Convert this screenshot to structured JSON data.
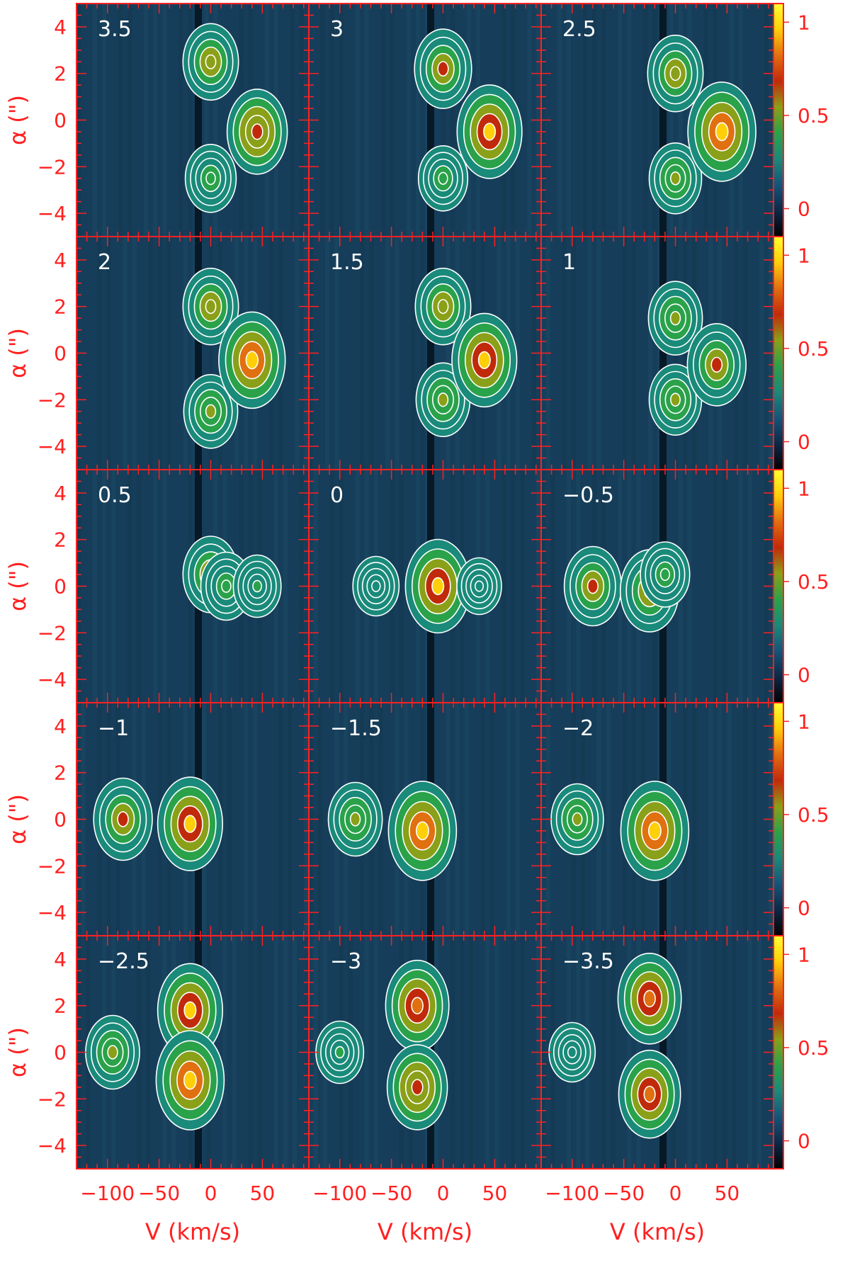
{
  "chart_data": {
    "type": "heatmap",
    "xlabel": "V (km/s)",
    "ylabel": "α (\")",
    "xlim": [
      -130,
      95
    ],
    "ylim": [
      -5,
      5
    ],
    "x_ticks": [
      -100,
      -50,
      0,
      50
    ],
    "x_tick_labels": [
      "−100",
      "−50",
      "0",
      "50"
    ],
    "y_ticks": [
      -4,
      -2,
      0,
      2,
      4
    ],
    "y_tick_labels": [
      "−4",
      "−2",
      "0",
      "2",
      "4"
    ],
    "colorbar": {
      "range": [
        -0.15,
        1.1
      ],
      "ticks": [
        0,
        0.5,
        1
      ],
      "tick_labels": [
        "0",
        "0.5",
        "1"
      ],
      "colors": [
        "#000000",
        "#0a2a48",
        "#14557a",
        "#1a8a7a",
        "#2aa24a",
        "#8aa018",
        "#c02a0a",
        "#e07010",
        "#ffd00a",
        "#ffff30"
      ]
    },
    "panels": [
      {
        "label": "3.5",
        "features": [
          {
            "v": 0,
            "a": 2.5,
            "peak": 0.6
          },
          {
            "v": 0,
            "a": -2.5,
            "peak": 0.45
          },
          {
            "v": 45,
            "a": -0.5,
            "peak": 0.75
          }
        ]
      },
      {
        "label": "3",
        "features": [
          {
            "v": 0,
            "a": 2.2,
            "peak": 0.65
          },
          {
            "v": 0,
            "a": -2.5,
            "peak": 0.4
          },
          {
            "v": 45,
            "a": -0.5,
            "peak": 0.9
          }
        ]
      },
      {
        "label": "2.5",
        "features": [
          {
            "v": 0,
            "a": 2.0,
            "peak": 0.6
          },
          {
            "v": 0,
            "a": -2.5,
            "peak": 0.5
          },
          {
            "v": 45,
            "a": -0.5,
            "peak": 1.0
          }
        ]
      },
      {
        "label": "2",
        "features": [
          {
            "v": 0,
            "a": 2.0,
            "peak": 0.6
          },
          {
            "v": 0,
            "a": -2.5,
            "peak": 0.55
          },
          {
            "v": 40,
            "a": -0.3,
            "peak": 0.95
          }
        ]
      },
      {
        "label": "1.5",
        "features": [
          {
            "v": 0,
            "a": 2.0,
            "peak": 0.6
          },
          {
            "v": 0,
            "a": -2.0,
            "peak": 0.55
          },
          {
            "v": 40,
            "a": -0.3,
            "peak": 0.9
          }
        ]
      },
      {
        "label": "1",
        "features": [
          {
            "v": 0,
            "a": 1.5,
            "peak": 0.55
          },
          {
            "v": 0,
            "a": -2.0,
            "peak": 0.5
          },
          {
            "v": 40,
            "a": -0.5,
            "peak": 0.7
          }
        ]
      },
      {
        "label": "0.5",
        "features": [
          {
            "v": 0,
            "a": 0.5,
            "peak": 0.6
          },
          {
            "v": 15,
            "a": 0,
            "peak": 0.45
          },
          {
            "v": 45,
            "a": 0,
            "peak": 0.35
          }
        ]
      },
      {
        "label": "0",
        "features": [
          {
            "v": -5,
            "a": 0,
            "peak": 0.9
          },
          {
            "v": -65,
            "a": 0,
            "peak": 0.3
          },
          {
            "v": 35,
            "a": 0,
            "peak": 0.25
          }
        ]
      },
      {
        "label": "−0.5",
        "features": [
          {
            "v": -80,
            "a": 0,
            "peak": 0.65
          },
          {
            "v": -25,
            "a": -0.2,
            "peak": 0.7
          },
          {
            "v": -10,
            "a": 0.5,
            "peak": 0.4
          }
        ]
      },
      {
        "label": "−1",
        "features": [
          {
            "v": -85,
            "a": 0,
            "peak": 0.7
          },
          {
            "v": -20,
            "a": -0.2,
            "peak": 0.9
          }
        ]
      },
      {
        "label": "−1.5",
        "features": [
          {
            "v": -85,
            "a": 0,
            "peak": 0.55
          },
          {
            "v": -20,
            "a": -0.5,
            "peak": 1.0
          }
        ]
      },
      {
        "label": "−2",
        "features": [
          {
            "v": -95,
            "a": 0,
            "peak": 0.5
          },
          {
            "v": -20,
            "a": -0.5,
            "peak": 1.0
          }
        ]
      },
      {
        "label": "−2.5",
        "features": [
          {
            "v": -95,
            "a": 0,
            "peak": 0.55
          },
          {
            "v": -20,
            "a": 1.8,
            "peak": 0.9
          },
          {
            "v": -20,
            "a": -1.2,
            "peak": 1.0
          }
        ]
      },
      {
        "label": "−3",
        "features": [
          {
            "v": -100,
            "a": 0,
            "peak": 0.35
          },
          {
            "v": -25,
            "a": 2.0,
            "peak": 0.85
          },
          {
            "v": -25,
            "a": -1.5,
            "peak": 0.75
          }
        ]
      },
      {
        "label": "−3.5",
        "features": [
          {
            "v": -100,
            "a": 0,
            "peak": 0.3
          },
          {
            "v": -25,
            "a": 2.3,
            "peak": 0.85
          },
          {
            "v": -25,
            "a": -1.8,
            "peak": 0.8
          }
        ]
      }
    ]
  }
}
